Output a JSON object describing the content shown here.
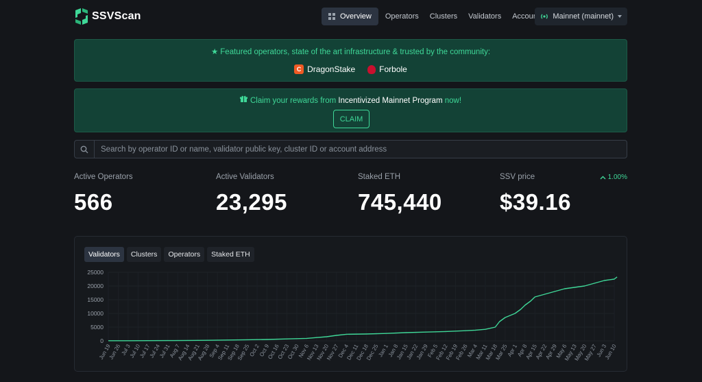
{
  "brand": {
    "name": "SSVScan"
  },
  "nav": {
    "items": [
      {
        "label": "Overview",
        "active": true
      },
      {
        "label": "Operators"
      },
      {
        "label": "Clusters"
      },
      {
        "label": "Validators"
      },
      {
        "label": "Accounts"
      }
    ],
    "network": "Mainnet (mainnet)"
  },
  "featured": {
    "text": "Featured operators, state of the art infrastructure & trusted by the community:",
    "operators": [
      {
        "name": "DragonStake"
      },
      {
        "name": "Forbole"
      }
    ]
  },
  "claim": {
    "prefix": "Claim your rewards from ",
    "highlight": "Incentivized Mainnet Program",
    "suffix": " now!",
    "button": "CLAIM"
  },
  "search": {
    "placeholder": "Search by operator ID or name, validator public key, cluster ID or account address"
  },
  "stats": [
    {
      "label": "Active Operators",
      "value": "566"
    },
    {
      "label": "Active Validators",
      "value": "23,295"
    },
    {
      "label": "Staked ETH",
      "value": "745,440"
    },
    {
      "label": "SSV price",
      "value": "$39.16",
      "change": "1.00%"
    }
  ],
  "chart_tabs": [
    "Validators",
    "Clusters",
    "Operators",
    "Staked ETH"
  ],
  "colors": {
    "accent": "#3fd898",
    "banner_bg": "#134236",
    "background": "#14161a"
  },
  "chart_data": {
    "type": "line",
    "title": "",
    "xlabel": "",
    "ylabel": "",
    "ylim": [
      0,
      25000
    ],
    "yticks": [
      0,
      5000,
      10000,
      15000,
      20000,
      25000
    ],
    "x_tick_labels": [
      "Jun 19",
      "Jun 26",
      "Jul 3",
      "Jul 10",
      "Jul 17",
      "Jul 24",
      "Jul 31",
      "Aug 7",
      "Aug 14",
      "Aug 21",
      "Aug 28",
      "Sep 4",
      "Sep 11",
      "Sep 18",
      "Sep 25",
      "Oct 2",
      "Oct 9",
      "Oct 16",
      "Oct 23",
      "Oct 30",
      "Nov 6",
      "Nov 13",
      "Nov 20",
      "Nov 27",
      "Dec 4",
      "Dec 11",
      "Dec 18",
      "Dec 25",
      "Jan 1",
      "Jan 8",
      "Jan 15",
      "Jan 22",
      "Jan 29",
      "Feb 5",
      "Feb 12",
      "Feb 19",
      "Feb 26",
      "Mar 4",
      "Mar 11",
      "Mar 18",
      "Mar 25",
      "Apr 1",
      "Apr 8",
      "Apr 15",
      "Apr 22",
      "Apr 29",
      "May 6",
      "May 13",
      "May 20",
      "May 27",
      "Jun 3",
      "Jun 10"
    ],
    "series": [
      {
        "x": [
          "Jun 19",
          "Jul 3",
          "Jul 17",
          "Jul 31",
          "Aug 14",
          "Aug 28",
          "Sep 11",
          "Sep 25",
          "Oct 9",
          "Oct 23",
          "Nov 6",
          "Nov 13",
          "Nov 20",
          "Nov 27",
          "Dec 4",
          "Dec 18",
          "Jan 1",
          "Jan 15",
          "Jan 29",
          "Feb 12",
          "Feb 26",
          "Mar 4",
          "Mar 11",
          "Mar 18",
          "Mar 21",
          "Mar 25",
          "Apr 1",
          "Apr 5",
          "Apr 8",
          "Apr 12",
          "Apr 15",
          "Apr 22",
          "Apr 29",
          "May 6",
          "May 13",
          "May 20",
          "May 27",
          "Jun 3",
          "Jun 10",
          "Jun 12"
        ],
        "values": [
          50,
          60,
          80,
          100,
          150,
          200,
          300,
          400,
          500,
          700,
          900,
          1200,
          1500,
          2000,
          2400,
          2500,
          2700,
          3000,
          3200,
          3400,
          3700,
          3900,
          4200,
          5000,
          7000,
          8500,
          10000,
          11500,
          13000,
          14500,
          16000,
          17000,
          18000,
          19000,
          19500,
          20000,
          21000,
          22000,
          22500,
          23295
        ]
      }
    ]
  }
}
